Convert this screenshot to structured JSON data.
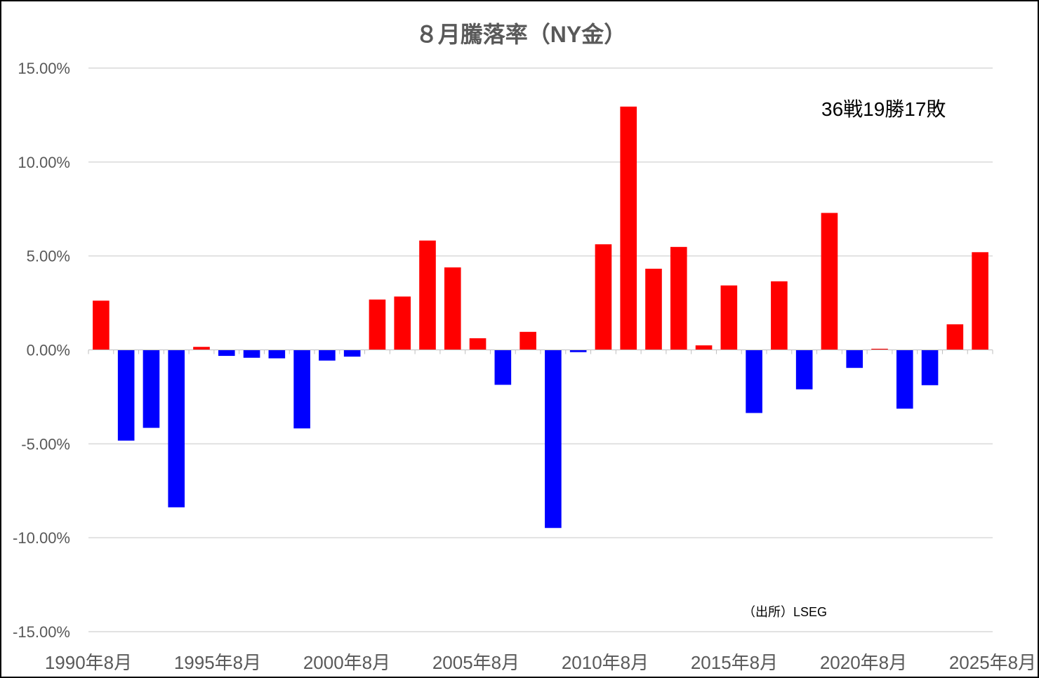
{
  "chart_data": {
    "type": "bar",
    "title": "８月騰落率（NY金）",
    "categories": [
      "1990年8月",
      "1991年8月",
      "1992年8月",
      "1993年8月",
      "1994年8月",
      "1995年8月",
      "1996年8月",
      "1997年8月",
      "1998年8月",
      "1999年8月",
      "2000年8月",
      "2001年8月",
      "2002年8月",
      "2003年8月",
      "2004年8月",
      "2005年8月",
      "2006年8月",
      "2007年8月",
      "2008年8月",
      "2009年8月",
      "2010年8月",
      "2011年8月",
      "2012年8月",
      "2013年8月",
      "2014年8月",
      "2015年8月",
      "2016年8月",
      "2017年8月",
      "2018年8月",
      "2019年8月",
      "2020年8月",
      "2021年8月",
      "2022年8月",
      "2023年8月",
      "2024年8月",
      "2025年8月"
    ],
    "x_tick_labels": [
      "1990年8月",
      "1995年8月",
      "2000年8月",
      "2005年8月",
      "2010年8月",
      "2015年8月",
      "2020年8月",
      "2025年8月"
    ],
    "values": [
      2.62,
      -4.83,
      -4.15,
      -8.38,
      0.16,
      -0.32,
      -0.42,
      -0.45,
      -4.18,
      -0.57,
      -0.36,
      2.68,
      2.84,
      5.82,
      4.39,
      0.62,
      -1.86,
      0.96,
      -9.48,
      -0.12,
      5.62,
      12.95,
      4.32,
      5.48,
      0.24,
      3.43,
      -3.36,
      3.65,
      -2.1,
      7.29,
      -0.96,
      0.06,
      -3.13,
      -1.88,
      1.36,
      5.2
    ],
    "y_unit": "%",
    "ylim": [
      -15,
      15
    ],
    "y_ticks": [
      15,
      10,
      5,
      0,
      -5,
      -10,
      -15
    ],
    "y_tick_labels": [
      "15.00%",
      "10.00%",
      "5.00%",
      "0.00%",
      "-5.00%",
      "-10.00%",
      "-15.00%"
    ],
    "positive_color": "#ff0000",
    "negative_color": "#0000ff",
    "gridline_color": "#d9d9d9",
    "grid": true,
    "legend": "none",
    "annotations": {
      "record": "36戦19勝17敗",
      "source": "（出所）LSEG"
    }
  }
}
